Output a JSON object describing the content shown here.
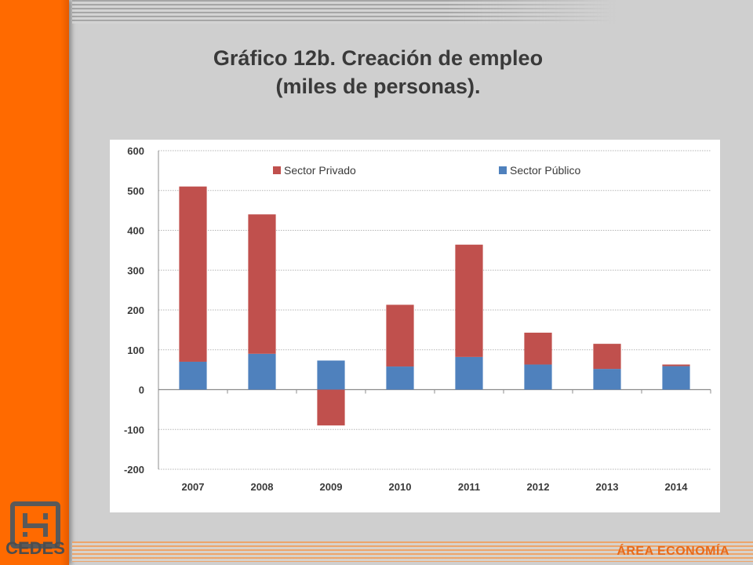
{
  "title": {
    "line1": "Gráfico 12b. Creación de empleo",
    "line2": "(miles de personas)."
  },
  "branding": {
    "logo_text": "CEDES",
    "area_label": "ÁREA ECONOMÍA"
  },
  "colors": {
    "privado": "#c0504d",
    "publico": "#4f81bd",
    "sidebar": "#ff6a00"
  },
  "chart_data": {
    "type": "bar",
    "stacked": true,
    "categories": [
      "2007",
      "2008",
      "2009",
      "2010",
      "2011",
      "2012",
      "2013",
      "2014"
    ],
    "series": [
      {
        "name": "Sector Privado",
        "color": "#c0504d",
        "values": [
          440,
          350,
          -90,
          155,
          282,
          80,
          63,
          4
        ]
      },
      {
        "name": "Sector Público",
        "color": "#4f81bd",
        "values": [
          70,
          90,
          73,
          58,
          82,
          63,
          52,
          59
        ]
      }
    ],
    "ylim": [
      -200,
      600
    ],
    "yticks": [
      600,
      500,
      400,
      300,
      200,
      100,
      0,
      -100,
      -200
    ],
    "grid": true,
    "legend": "top"
  }
}
